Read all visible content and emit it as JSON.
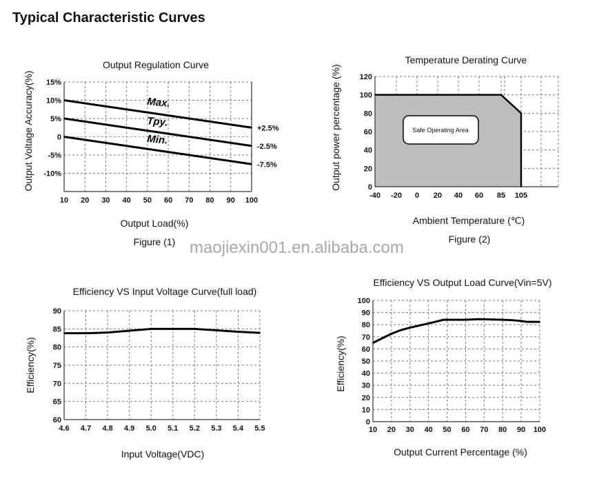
{
  "page_title": "Typical Characteristic Curves",
  "watermark": "maojiexin001.en.alibaba.com",
  "chart_data": [
    {
      "type": "line",
      "title": "Output Regulation Curve",
      "xlabel": "Output Load(%)",
      "ylabel": "Output Voltage Accuracy(%)",
      "figure_label": "Figure (1)",
      "xlim": [
        10,
        100
      ],
      "ylim": [
        -15,
        15
      ],
      "x_ticks": [
        "10",
        "20",
        "30",
        "40",
        "50",
        "60",
        "70",
        "80",
        "90",
        "100"
      ],
      "y_ticks": [
        "15%",
        "10%",
        "5%",
        "0",
        "-5%",
        "-10%"
      ],
      "y_tick_values": [
        15,
        10,
        5,
        0,
        -5,
        -10
      ],
      "grid": true,
      "series": [
        {
          "name": "Max.",
          "x": [
            10,
            100
          ],
          "y": [
            10,
            2.5
          ],
          "end_label": "+2.5%"
        },
        {
          "name": "Tpy.",
          "x": [
            10,
            100
          ],
          "y": [
            5,
            -2.5
          ],
          "end_label": "-2.5%"
        },
        {
          "name": "Min.",
          "x": [
            10,
            100
          ],
          "y": [
            0,
            -7.5
          ],
          "end_label": "-7.5%"
        }
      ],
      "reference_line": {
        "y": 0,
        "color": "#e08080"
      }
    },
    {
      "type": "area",
      "title": "Temperature Derating Curve",
      "xlabel": "Ambient Temperature (℃)",
      "ylabel": "Output power percentage (%)",
      "figure_label": "Figure (2)",
      "x_ticks": [
        "-40",
        "-20",
        "0",
        "20",
        "40",
        "60",
        "85",
        "105"
      ],
      "x_tick_values": [
        -40,
        -20,
        0,
        20,
        40,
        60,
        85,
        105
      ],
      "ylim": [
        0,
        120
      ],
      "y_ticks": [
        "120",
        "100",
        "80",
        "60",
        "40",
        "20",
        "0"
      ],
      "y_tick_values": [
        120,
        100,
        80,
        60,
        40,
        20,
        0
      ],
      "grid": true,
      "series": [
        {
          "name": "Derating",
          "x": [
            -40,
            85,
            105,
            105
          ],
          "y": [
            100,
            100,
            80,
            0
          ],
          "fill": "#bdbdbd"
        }
      ],
      "annotation": "Safe Operating Area"
    },
    {
      "type": "line",
      "title": "Efficiency VS Input Voltage Curve(full load)",
      "xlabel": "Input Voltage(VDC)",
      "ylabel": "Efficiency(%)",
      "xlim": [
        4.6,
        5.5
      ],
      "ylim": [
        60,
        90
      ],
      "x_ticks": [
        "4.6",
        "4.7",
        "4.8",
        "4.9",
        "5.0",
        "5.1",
        "5.2",
        "5.3",
        "5.4",
        "5.5"
      ],
      "y_ticks": [
        "90",
        "85",
        "80",
        "75",
        "70",
        "65",
        "60"
      ],
      "y_tick_values": [
        90,
        85,
        80,
        75,
        70,
        65,
        60
      ],
      "grid": true,
      "series": [
        {
          "name": "Efficiency",
          "x": [
            4.6,
            4.7,
            4.8,
            4.9,
            5.0,
            5.1,
            5.2,
            5.3,
            5.4,
            5.5
          ],
          "y": [
            83.8,
            83.8,
            84.0,
            84.5,
            85.0,
            85.0,
            85.0,
            84.6,
            84.2,
            83.9
          ]
        }
      ]
    },
    {
      "type": "line",
      "title": "Efficiency VS Output Load Curve(Vin=5V)",
      "xlabel": "Output Current Percentage (%)",
      "ylabel": "Efficiency(%)",
      "xlim": [
        10,
        100
      ],
      "ylim": [
        0,
        100
      ],
      "x_ticks": [
        "10",
        "20",
        "30",
        "40",
        "50",
        "60",
        "70",
        "80",
        "90",
        "100"
      ],
      "y_ticks": [
        "100",
        "90",
        "80",
        "70",
        "60",
        "50",
        "40",
        "30",
        "20",
        "10",
        "0"
      ],
      "y_tick_values": [
        100,
        90,
        80,
        70,
        60,
        50,
        40,
        30,
        20,
        10,
        0
      ],
      "grid": true,
      "series": [
        {
          "name": "Efficiency",
          "x": [
            10,
            20,
            25,
            30,
            40,
            48,
            60,
            67,
            80,
            85,
            90,
            93,
            100
          ],
          "y": [
            65,
            72.5,
            75.5,
            77.5,
            81,
            84,
            84,
            84.5,
            84,
            83.7,
            83,
            82.3,
            82.3
          ]
        }
      ]
    }
  ]
}
